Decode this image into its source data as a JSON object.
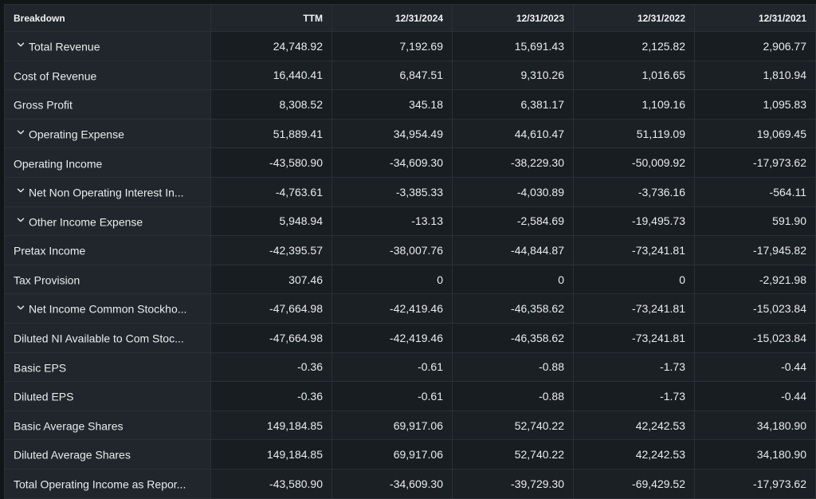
{
  "columns": [
    "Breakdown",
    "TTM",
    "12/31/2024",
    "12/31/2023",
    "12/31/2022",
    "12/31/2021"
  ],
  "rows": [
    {
      "label": "Total Revenue",
      "expandable": true,
      "values": [
        "24,748.92",
        "7,192.69",
        "15,691.43",
        "2,125.82",
        "2,906.77"
      ]
    },
    {
      "label": "Cost of Revenue",
      "expandable": false,
      "values": [
        "16,440.41",
        "6,847.51",
        "9,310.26",
        "1,016.65",
        "1,810.94"
      ]
    },
    {
      "label": "Gross Profit",
      "expandable": false,
      "values": [
        "8,308.52",
        "345.18",
        "6,381.17",
        "1,109.16",
        "1,095.83"
      ]
    },
    {
      "label": "Operating Expense",
      "expandable": true,
      "values": [
        "51,889.41",
        "34,954.49",
        "44,610.47",
        "51,119.09",
        "19,069.45"
      ]
    },
    {
      "label": "Operating Income",
      "expandable": false,
      "values": [
        "-43,580.90",
        "-34,609.30",
        "-38,229.30",
        "-50,009.92",
        "-17,973.62"
      ]
    },
    {
      "label": "Net Non Operating Interest In...",
      "expandable": true,
      "values": [
        "-4,763.61",
        "-3,385.33",
        "-4,030.89",
        "-3,736.16",
        "-564.11"
      ]
    },
    {
      "label": "Other Income Expense",
      "expandable": true,
      "values": [
        "5,948.94",
        "-13.13",
        "-2,584.69",
        "-19,495.73",
        "591.90"
      ]
    },
    {
      "label": "Pretax Income",
      "expandable": false,
      "values": [
        "-42,395.57",
        "-38,007.76",
        "-44,844.87",
        "-73,241.81",
        "-17,945.82"
      ]
    },
    {
      "label": "Tax Provision",
      "expandable": false,
      "values": [
        "307.46",
        "0",
        "0",
        "0",
        "-2,921.98"
      ]
    },
    {
      "label": "Net Income Common Stockho...",
      "expandable": true,
      "values": [
        "-47,664.98",
        "-42,419.46",
        "-46,358.62",
        "-73,241.81",
        "-15,023.84"
      ]
    },
    {
      "label": "Diluted NI Available to Com Stoc...",
      "expandable": false,
      "values": [
        "-47,664.98",
        "-42,419.46",
        "-46,358.62",
        "-73,241.81",
        "-15,023.84"
      ]
    },
    {
      "label": "Basic EPS",
      "expandable": false,
      "values": [
        "-0.36",
        "-0.61",
        "-0.88",
        "-1.73",
        "-0.44"
      ]
    },
    {
      "label": "Diluted EPS",
      "expandable": false,
      "values": [
        "-0.36",
        "-0.61",
        "-0.88",
        "-1.73",
        "-0.44"
      ]
    },
    {
      "label": "Basic Average Shares",
      "expandable": false,
      "values": [
        "149,184.85",
        "69,917.06",
        "52,740.22",
        "42,242.53",
        "34,180.90"
      ]
    },
    {
      "label": "Diluted Average Shares",
      "expandable": false,
      "values": [
        "149,184.85",
        "69,917.06",
        "52,740.22",
        "42,242.53",
        "34,180.90"
      ]
    },
    {
      "label": "Total Operating Income as Repor...",
      "expandable": false,
      "values": [
        "-43,580.90",
        "-34,609.30",
        "-39,729.30",
        "-69,429.52",
        "-17,973.62"
      ]
    }
  ],
  "icons": {
    "expand": "chevron-down-icon"
  },
  "colors": {
    "background": "#101518",
    "header_bg": "#20262b",
    "label_bg": "#20262b",
    "cell_bg": "#181d21",
    "border": "#2b3036",
    "text": "#e9ecef"
  }
}
